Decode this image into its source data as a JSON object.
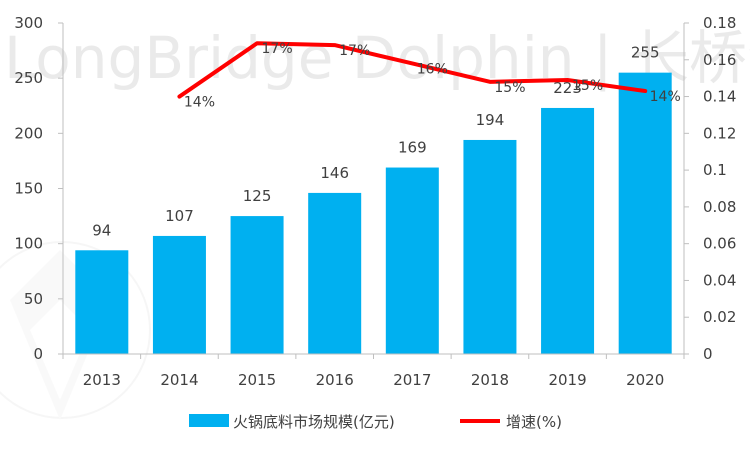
{
  "watermark": {
    "text": "LongBridge Dolphin | 长桥海豚投研"
  },
  "colors": {
    "bar": "#00b0f0",
    "line": "#ff0000",
    "axis": "#bfbfbf",
    "text": "#404040"
  },
  "chart_data": {
    "type": "bar",
    "categories": [
      "2013",
      "2014",
      "2015",
      "2016",
      "2017",
      "2018",
      "2019",
      "2020"
    ],
    "series": [
      {
        "name": "火锅底料市场规模(亿元)",
        "type": "bar",
        "axis": "left",
        "values": [
          94,
          107,
          125,
          146,
          169,
          194,
          223,
          255
        ],
        "labels": [
          "94",
          "107",
          "125",
          "146",
          "169",
          "194",
          "223",
          "255"
        ]
      },
      {
        "name": "增速(%)",
        "type": "line",
        "axis": "right",
        "values": [
          null,
          0.14,
          0.169,
          0.168,
          0.158,
          0.148,
          0.149,
          0.143
        ],
        "labels": [
          "",
          "14%",
          "17%",
          "17%",
          "16%",
          "15%",
          "15%",
          "14%"
        ]
      }
    ],
    "y_left": {
      "min": 0,
      "max": 300,
      "ticks": [
        "0",
        "50",
        "100",
        "150",
        "200",
        "250",
        "300"
      ]
    },
    "y_right": {
      "min": 0,
      "max": 0.18,
      "ticks": [
        "0",
        "0.02",
        "0.04",
        "0.06",
        "0.08",
        "0.1",
        "0.12",
        "0.14",
        "0.16",
        "0.18"
      ]
    },
    "grid": false,
    "legend": "bottom"
  }
}
